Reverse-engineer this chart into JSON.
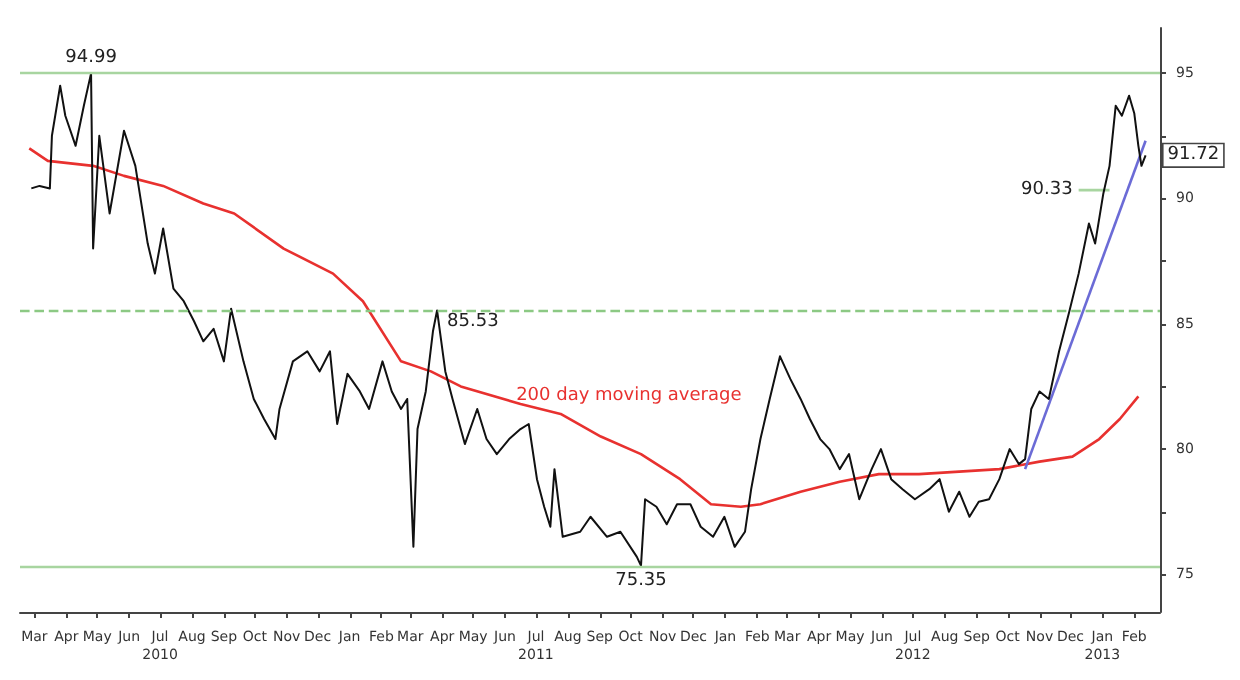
{
  "chart_data": {
    "type": "line",
    "marker": "none",
    "grid": false,
    "xlim": [
      "2010-03-01",
      "2013-03-12"
    ],
    "xticks": [
      {
        "value": "2010-03-15",
        "label": "Mar"
      },
      {
        "value": "2010-04-15",
        "label": "Apr"
      },
      {
        "value": "2010-05-15",
        "label": "May"
      },
      {
        "value": "2010-06-15",
        "label": "Jun"
      },
      {
        "value": "2010-07-15",
        "label": "Jul\n2010"
      },
      {
        "value": "2010-08-15",
        "label": "Aug"
      },
      {
        "value": "2010-09-15",
        "label": "Sep"
      },
      {
        "value": "2010-10-15",
        "label": "Oct"
      },
      {
        "value": "2010-11-15",
        "label": "Nov"
      },
      {
        "value": "2010-12-15",
        "label": "Dec"
      },
      {
        "value": "2011-01-15",
        "label": "Jan"
      },
      {
        "value": "2011-02-15",
        "label": "Feb"
      },
      {
        "value": "2011-03-15",
        "label": "Mar"
      },
      {
        "value": "2011-04-15",
        "label": "Apr"
      },
      {
        "value": "2011-05-15",
        "label": "May"
      },
      {
        "value": "2011-06-15",
        "label": "Jun"
      },
      {
        "value": "2011-07-15",
        "label": "Jul\n2011"
      },
      {
        "value": "2011-08-15",
        "label": "Aug"
      },
      {
        "value": "2011-09-15",
        "label": "Sep"
      },
      {
        "value": "2011-10-15",
        "label": "Oct"
      },
      {
        "value": "2011-11-15",
        "label": "Nov"
      },
      {
        "value": "2011-12-15",
        "label": "Dec"
      },
      {
        "value": "2012-01-15",
        "label": "Jan"
      },
      {
        "value": "2012-02-15",
        "label": "Feb"
      },
      {
        "value": "2012-03-15",
        "label": "Mar"
      },
      {
        "value": "2012-04-15",
        "label": "Apr"
      },
      {
        "value": "2012-05-15",
        "label": "May"
      },
      {
        "value": "2012-06-15",
        "label": "Jun"
      },
      {
        "value": "2012-07-15",
        "label": "Jul\n2012"
      },
      {
        "value": "2012-08-15",
        "label": "Aug"
      },
      {
        "value": "2012-09-15",
        "label": "Sep"
      },
      {
        "value": "2012-10-15",
        "label": "Oct"
      },
      {
        "value": "2012-11-15",
        "label": "Nov"
      },
      {
        "value": "2012-12-15",
        "label": "Dec"
      },
      {
        "value": "2013-01-15",
        "label": "Jan\n2013"
      },
      {
        "value": "2013-02-15",
        "label": "Feb"
      }
    ],
    "ylim": [
      73.5,
      96.8
    ],
    "yticks": [
      75,
      {
        "value": 77.5,
        "label": null
      },
      80,
      {
        "value": 82.5,
        "label": null
      },
      85,
      {
        "value": 87.5,
        "label": null
      },
      90,
      {
        "value": 92.5,
        "label": null
      },
      95
    ],
    "ref_lines": [
      {
        "axis": "y",
        "value": 94.99,
        "color": "#a8d5a0",
        "line_style": "solid"
      },
      {
        "axis": "y",
        "value": 85.53,
        "color": "#8cc984",
        "line_style": "dashed"
      },
      {
        "axis": "y",
        "value": 75.35,
        "color": "#a8d5a0",
        "line_style": "solid"
      }
    ],
    "annotations": [
      {
        "text": "94.99",
        "x": "2010-05-09",
        "y": 94.99
      },
      {
        "text": "85.53",
        "x": "2011-04-10",
        "y": 85.53
      },
      {
        "text": "75.35",
        "x": "2011-10-25",
        "y": 75.35
      },
      {
        "text": "90.33",
        "x": "2012-12-23",
        "y": 90.33
      },
      {
        "text": "91.72",
        "x": "2013-02-26",
        "y": 91.72
      }
    ],
    "series": [
      {
        "color": "#111111",
        "x": [
          "2010-03-12",
          "2010-03-20",
          "2010-03-30",
          "2010-04-01",
          "2010-04-09",
          "2010-04-14",
          "2010-04-24",
          "2010-05-02",
          "2010-05-09",
          "2010-05-11",
          "2010-05-17",
          "2010-05-27",
          "2010-06-10",
          "2010-06-21",
          "2010-07-03",
          "2010-07-10",
          "2010-07-18",
          "2010-07-28",
          "2010-08-07",
          "2010-08-17",
          "2010-08-26",
          "2010-09-05",
          "2010-09-15",
          "2010-09-22",
          "2010-10-04",
          "2010-10-14",
          "2010-10-24",
          "2010-11-04",
          "2010-11-08",
          "2010-11-21",
          "2010-12-05",
          "2010-12-17",
          "2010-12-27",
          "2011-01-03",
          "2011-01-13",
          "2011-01-25",
          "2011-02-03",
          "2011-02-16",
          "2011-02-25",
          "2011-03-06",
          "2011-03-12",
          "2011-03-18",
          "2011-03-22",
          "2011-03-30",
          "2011-04-06",
          "2011-04-10",
          "2011-04-18",
          "2011-04-25",
          "2011-05-07",
          "2011-05-19",
          "2011-05-28",
          "2011-06-07",
          "2011-06-19",
          "2011-06-30",
          "2011-07-08",
          "2011-07-16",
          "2011-07-23",
          "2011-07-29",
          "2011-08-02",
          "2011-08-10",
          "2011-08-27",
          "2011-09-06",
          "2011-09-22",
          "2011-10-05",
          "2011-10-21",
          "2011-10-25",
          "2011-10-29",
          "2011-11-09",
          "2011-11-19",
          "2011-11-29",
          "2011-12-12",
          "2011-12-22",
          "2012-01-03",
          "2012-01-14",
          "2012-01-24",
          "2012-02-03",
          "2012-02-09",
          "2012-02-18",
          "2012-02-27",
          "2012-03-08",
          "2012-03-18",
          "2012-03-28",
          "2012-04-06",
          "2012-04-16",
          "2012-04-25",
          "2012-05-05",
          "2012-05-14",
          "2012-05-24",
          "2012-06-05",
          "2012-06-14",
          "2012-06-24",
          "2012-07-05",
          "2012-07-17",
          "2012-07-31",
          "2012-08-10",
          "2012-08-19",
          "2012-08-29",
          "2012-09-08",
          "2012-09-17",
          "2012-09-27",
          "2012-10-07",
          "2012-10-17",
          "2012-10-26",
          "2012-11-01",
          "2012-11-07",
          "2012-11-15",
          "2012-11-24",
          "2012-12-04",
          "2012-12-14",
          "2012-12-23",
          "2013-01-02",
          "2013-01-08",
          "2013-01-16",
          "2013-01-22",
          "2013-01-28",
          "2013-02-03",
          "2013-02-10",
          "2013-02-15",
          "2013-02-19",
          "2013-02-22",
          "2013-02-26"
        ],
        "values": [
          90.4,
          90.5,
          90.4,
          92.5,
          94.5,
          93.3,
          92.1,
          93.7,
          94.99,
          88.0,
          92.5,
          89.4,
          92.7,
          91.3,
          88.2,
          87.0,
          88.8,
          86.4,
          85.9,
          85.1,
          84.3,
          84.8,
          83.5,
          85.6,
          83.5,
          82.0,
          81.2,
          80.4,
          81.6,
          83.5,
          83.9,
          83.1,
          83.9,
          81.0,
          83.0,
          82.3,
          81.6,
          83.5,
          82.3,
          81.6,
          82.0,
          76.1,
          80.8,
          82.3,
          84.7,
          85.53,
          83.1,
          82.0,
          80.2,
          81.6,
          80.4,
          79.8,
          80.4,
          80.8,
          81.0,
          78.8,
          77.7,
          76.9,
          79.2,
          76.5,
          76.7,
          77.3,
          76.5,
          76.7,
          75.7,
          75.35,
          78.0,
          77.7,
          77.0,
          77.8,
          77.8,
          76.9,
          76.5,
          77.3,
          76.1,
          76.7,
          78.4,
          80.4,
          82.0,
          83.7,
          82.8,
          82.0,
          81.2,
          80.4,
          80.0,
          79.2,
          79.8,
          78.0,
          79.2,
          80.0,
          78.8,
          78.4,
          78.0,
          78.4,
          78.8,
          77.5,
          78.3,
          77.3,
          77.9,
          78.0,
          78.8,
          80.0,
          79.4,
          79.6,
          81.6,
          82.3,
          82.0,
          83.9,
          85.5,
          87.0,
          89.0,
          88.2,
          90.2,
          91.3,
          93.7,
          93.3,
          94.1,
          93.4,
          92.1,
          91.3,
          91.72
        ]
      },
      {
        "name": "200 day moving average",
        "color": "#e8312f",
        "x": [
          "2010-03-10",
          "2010-03-28",
          "2010-05-11",
          "2010-06-10",
          "2010-07-18",
          "2010-08-26",
          "2010-09-25",
          "2010-11-12",
          "2010-12-30",
          "2011-01-28",
          "2011-03-06",
          "2011-04-04",
          "2011-05-03",
          "2011-06-30",
          "2011-08-08",
          "2011-09-16",
          "2011-10-25",
          "2011-12-02",
          "2012-01-01",
          "2012-01-30",
          "2012-02-18",
          "2012-03-28",
          "2012-05-05",
          "2012-06-12",
          "2012-07-21",
          "2012-08-29",
          "2012-10-07",
          "2012-11-15",
          "2012-12-17",
          "2013-01-12",
          "2013-02-01",
          "2013-02-19"
        ],
        "values": [
          92.0,
          91.5,
          91.3,
          90.9,
          90.5,
          89.8,
          89.4,
          88.0,
          87.0,
          85.9,
          83.5,
          83.1,
          82.5,
          81.8,
          81.4,
          80.5,
          79.8,
          78.8,
          77.8,
          77.7,
          77.8,
          78.3,
          78.7,
          79.0,
          79.0,
          79.1,
          79.2,
          79.5,
          79.7,
          80.4,
          81.2,
          82.1
        ]
      },
      {
        "color": "#6b6bd6",
        "x": [
          "2012-11-01",
          "2013-02-26"
        ],
        "values": [
          79.2,
          92.3
        ]
      },
      {
        "color": "#a8d5a0",
        "x": [
          "2012-12-23",
          "2013-01-22"
        ],
        "values": [
          90.33,
          90.33
        ]
      }
    ]
  }
}
